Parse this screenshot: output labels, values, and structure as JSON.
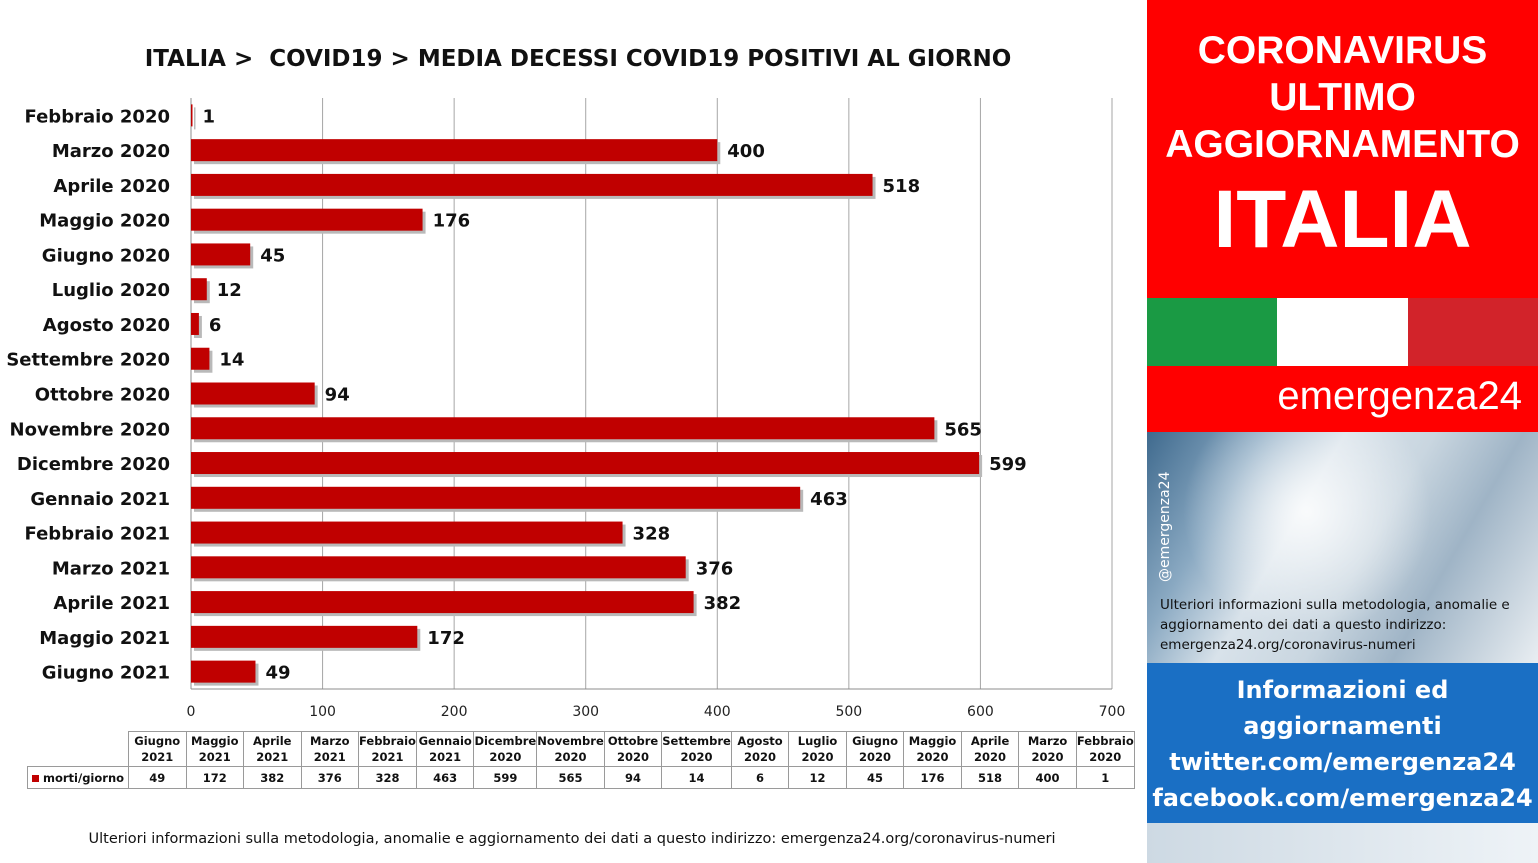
{
  "chart_data": {
    "type": "bar",
    "orientation": "horizontal",
    "title": "ITALIA >  COVID19 > MEDIA DECESSI COVID19 POSITIVI AL GIORNO",
    "categories": [
      "Febbraio 2020",
      "Marzo 2020",
      "Aprile 2020",
      "Maggio 2020",
      "Giugno 2020",
      "Luglio 2020",
      "Agosto 2020",
      "Settembre 2020",
      "Ottobre 2020",
      "Novembre 2020",
      "Dicembre 2020",
      "Gennaio 2021",
      "Febbraio 2021",
      "Marzo 2021",
      "Aprile 2021",
      "Maggio 2021",
      "Giugno 2021"
    ],
    "series": [
      {
        "name": "morti/giorno",
        "values": [
          1,
          400,
          518,
          176,
          45,
          12,
          6,
          14,
          94,
          565,
          599,
          463,
          328,
          376,
          382,
          172,
          49
        ]
      }
    ],
    "xlim": [
      0,
      700
    ],
    "xticks": [
      0,
      100,
      200,
      300,
      400,
      500,
      600,
      700
    ],
    "grid": true,
    "bar_color": "#c00000",
    "data_labels": true
  },
  "table": {
    "headers": [
      "Giugno 2021",
      "Maggio 2021",
      "Aprile 2021",
      "Marzo 2021",
      "Febbraio 2021",
      "Gennaio 2021",
      "Dicembre 2020",
      "Novembre 2020",
      "Ottobre 2020",
      "Settembre 2020",
      "Agosto 2020",
      "Luglio 2020",
      "Giugno 2020",
      "Maggio 2020",
      "Aprile 2020",
      "Marzo 2020",
      "Febbraio 2020"
    ],
    "series_label": "morti/giorno",
    "values": [
      49,
      172,
      382,
      376,
      328,
      463,
      599,
      565,
      94,
      14,
      6,
      12,
      45,
      176,
      518,
      400,
      1
    ]
  },
  "footnote": "Ulteriori informazioni sulla metodologia, anomalie e aggiornamento dei dati a questo indirizzo: emergenza24.org/coronavirus-numeri",
  "sidebar": {
    "header_lines": [
      "CORONAVIRUS",
      "ULTIMO",
      "AGGIORNAMENTO"
    ],
    "country": "ITALIA",
    "brand": "emergenza24",
    "handle": "@emergenza24",
    "info_text": "Ulteriori informazioni sulla metodologia, anomalie e aggiornamento dei dati a questo indirizzo: emergenza24.org/coronavirus-numeri",
    "info_lines": [
      "Informazioni ed",
      "aggiornamenti",
      "twitter.com/emergenza24",
      "facebook.com/emergenza24"
    ],
    "flag_colors": [
      "#1a9a44",
      "#ffffff",
      "#d2232a"
    ],
    "accent_red": "#ff0000",
    "accent_blue": "#1a6fc4"
  }
}
